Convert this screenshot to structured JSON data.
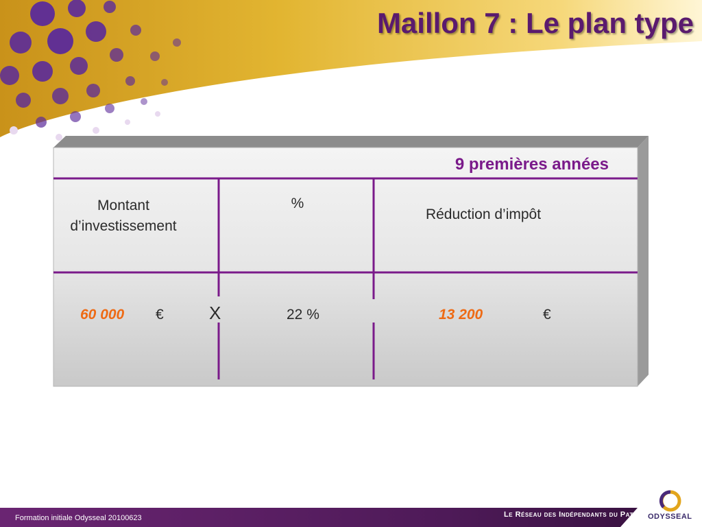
{
  "slide": {
    "title": "Maillon 7 : Le plan type"
  },
  "table": {
    "period_label": "9 premières années",
    "headers": {
      "amount": "Montant d’investissement",
      "percent": "%",
      "reduction": "Réduction d’impôt"
    },
    "row": {
      "amount": "60 000",
      "amount_currency": "€",
      "operator": "X",
      "percent": "22 %",
      "reduction": "13 200",
      "reduction_currency": "€"
    }
  },
  "footer": {
    "left": "Formation initiale Odysseal 20100623",
    "tagline": "Le Réseau des Indépendants du Patrimoine",
    "brand": "ODYSSEAL"
  },
  "colors": {
    "title": "#5a1a6e",
    "accent_purple": "#7a1a8a",
    "value_orange": "#ee6a14",
    "gold": "#d9a51c",
    "footer_bar": "#5e1f66"
  }
}
